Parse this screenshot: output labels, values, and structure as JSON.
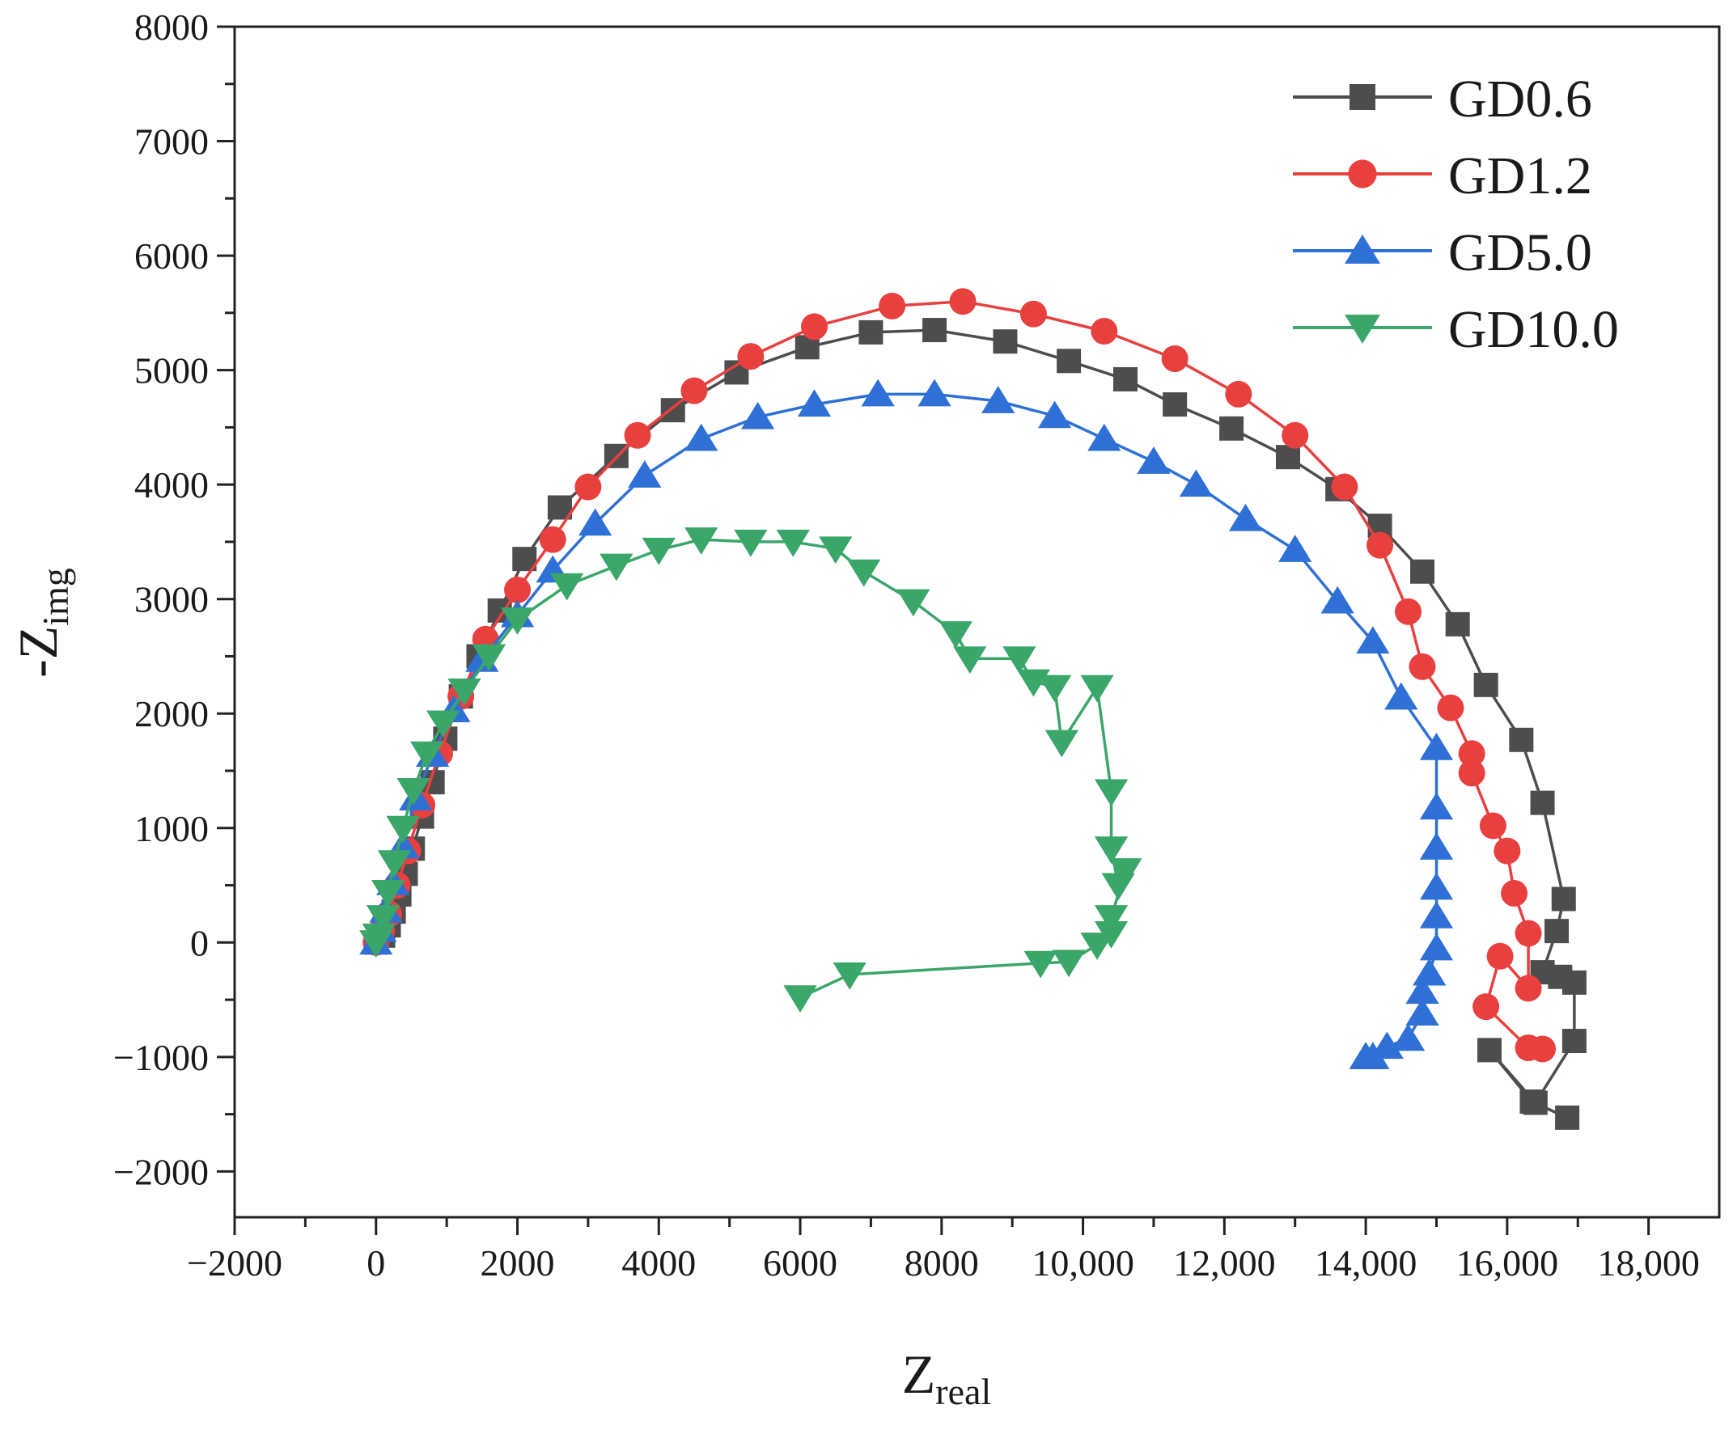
{
  "chart_data": {
    "type": "line",
    "title": "",
    "xlabel": "Z",
    "xlabel_sub": "real",
    "ylabel": "-Z",
    "ylabel_sub": "img",
    "xlim": [
      -2000,
      19000
    ],
    "ylim": [
      -2400,
      8000
    ],
    "x_ticks": [
      -2000,
      0,
      2000,
      4000,
      6000,
      8000,
      10000,
      12000,
      14000,
      16000,
      18000
    ],
    "x_tick_labels": [
      "−2000",
      "0",
      "2000",
      "4000",
      "6000",
      "8000",
      "10,000",
      "12,000",
      "14,000",
      "16,000",
      "18,000"
    ],
    "y_ticks": [
      -2000,
      -1000,
      0,
      1000,
      2000,
      3000,
      4000,
      5000,
      6000,
      7000,
      8000
    ],
    "y_tick_labels": [
      "−2000",
      "−1000",
      "0",
      "1000",
      "2000",
      "3000",
      "4000",
      "5000",
      "6000",
      "7000",
      "8000"
    ],
    "grid": false,
    "legend_position": "top-right",
    "series": [
      {
        "name": "GD0.6",
        "color": "#4d4d4d",
        "marker": "square",
        "x": [
          0,
          100,
          180,
          250,
          330,
          420,
          520,
          650,
          800,
          980,
          1200,
          1450,
          1750,
          2100,
          2600,
          3400,
          4200,
          5100,
          6100,
          7000,
          7900,
          8900,
          9800,
          10600,
          11300,
          12100,
          12900,
          13600,
          14200,
          14800,
          15300,
          15700,
          16200,
          16500,
          16800,
          16700,
          16500,
          16750,
          16950,
          16950,
          16400,
          15750,
          16350,
          16850
        ],
        "y": [
          0,
          60,
          150,
          270,
          420,
          600,
          820,
          1100,
          1400,
          1780,
          2150,
          2500,
          2900,
          3350,
          3800,
          4250,
          4650,
          4980,
          5200,
          5330,
          5350,
          5250,
          5080,
          4920,
          4700,
          4490,
          4240,
          3960,
          3640,
          3240,
          2780,
          2250,
          1770,
          1220,
          380,
          100,
          -260,
          -300,
          -350,
          -860,
          -1400,
          -940,
          -1390,
          -1530
        ]
      },
      {
        "name": "GD1.2",
        "color": "#e8403f",
        "marker": "circle",
        "x": [
          0,
          80,
          180,
          300,
          450,
          650,
          900,
          1200,
          1550,
          2000,
          2500,
          3000,
          3700,
          4500,
          5300,
          6200,
          7300,
          8300,
          9300,
          10300,
          11300,
          12200,
          13000,
          13700,
          14200,
          14600,
          14800,
          15200,
          15500,
          15500,
          15800,
          16000,
          16100,
          16300,
          16300,
          15900,
          15700,
          16300,
          16500
        ],
        "y": [
          0,
          100,
          250,
          500,
          800,
          1200,
          1650,
          2150,
          2650,
          3080,
          3520,
          3980,
          4430,
          4820,
          5120,
          5380,
          5560,
          5600,
          5490,
          5340,
          5100,
          4790,
          4430,
          3980,
          3470,
          2890,
          2410,
          2050,
          1650,
          1480,
          1020,
          800,
          430,
          80,
          -400,
          -120,
          -560,
          -920,
          -930
        ]
      },
      {
        "name": "GD5.0",
        "color": "#2f70d6",
        "marker": "triangle-up",
        "x": [
          0,
          60,
          140,
          240,
          380,
          560,
          800,
          1100,
          1500,
          2000,
          2500,
          3100,
          3800,
          4600,
          5400,
          6200,
          7100,
          7900,
          8800,
          9600,
          10300,
          11000,
          11600,
          12300,
          13000,
          13600,
          14100,
          14500,
          15000,
          15000,
          15000,
          15000,
          15000,
          15000,
          14900,
          14800,
          14800,
          14600,
          14300,
          14100,
          14000
        ],
        "y": [
          0,
          110,
          280,
          520,
          840,
          1260,
          1640,
          2030,
          2470,
          2860,
          3250,
          3660,
          4080,
          4400,
          4590,
          4700,
          4790,
          4790,
          4730,
          4600,
          4400,
          4200,
          4000,
          3700,
          3430,
          2980,
          2630,
          2140,
          1700,
          1180,
          830,
          480,
          230,
          -50,
          -270,
          -430,
          -620,
          -840,
          -910,
          -1000,
          -1000
        ]
      },
      {
        "name": "GD10.0",
        "color": "#3aa66a",
        "marker": "triangle-down",
        "x": [
          0,
          40,
          100,
          170,
          260,
          380,
          530,
          720,
          950,
          1250,
          1600,
          2000,
          2700,
          3400,
          4000,
          4600,
          5300,
          5900,
          6500,
          6900,
          7600,
          8200,
          8400,
          9100,
          9300,
          9600,
          9700,
          10200,
          10400,
          10400,
          10500,
          10600,
          10400,
          10400,
          10200,
          9800,
          9400,
          6700,
          6000
        ],
        "y": [
          0,
          60,
          220,
          440,
          700,
          1000,
          1330,
          1650,
          1920,
          2200,
          2500,
          2820,
          3120,
          3290,
          3430,
          3520,
          3500,
          3500,
          3440,
          3240,
          2980,
          2700,
          2480,
          2480,
          2280,
          2230,
          1750,
          2230,
          1320,
          820,
          500,
          630,
          220,
          80,
          -20,
          -170,
          -180,
          -280,
          -480
        ]
      }
    ]
  }
}
